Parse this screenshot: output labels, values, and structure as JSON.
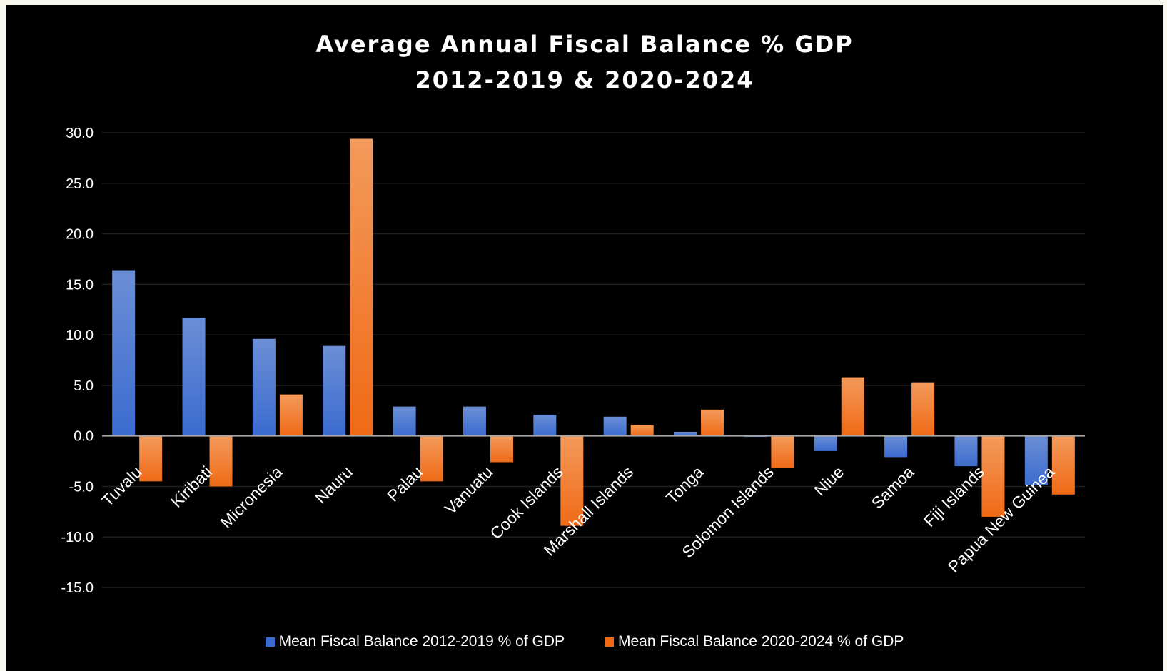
{
  "colors": {
    "background": "#000000",
    "page": "#f7f7ee",
    "series1_light": "#6b8fd6",
    "series1_dark": "#3b6bcf",
    "series2_light": "#f39a5b",
    "series2_dark": "#f06a16",
    "grid": "#1f1f1f",
    "zero_line": "#a6a6a6",
    "text": "#ffffff"
  },
  "chart_data": {
    "type": "bar",
    "title_lines": [
      "Average Annual Fiscal Balance % GDP",
      "2012-2019 & 2020-2024"
    ],
    "xlabel": "",
    "ylabel": "",
    "ylim": [
      -15,
      30
    ],
    "yticks": [
      "30.0",
      "25.0",
      "20.0",
      "15.0",
      "10.0",
      "5.0",
      "0.0",
      "-5.0",
      "-10.0",
      "-15.0"
    ],
    "ytick_values": [
      30,
      25,
      20,
      15,
      10,
      5,
      0,
      -5,
      -10,
      -15
    ],
    "grid": true,
    "legend_position": "bottom",
    "categories": [
      "Tuvalu",
      "Kiribati",
      "Micronesia",
      "Nauru",
      "Palau",
      "Vanuatu",
      "Cook Islands",
      "Marshall Islands",
      "Tonga",
      "Solomon Islands",
      "Niue",
      "Samoa",
      "Fiji Islands",
      "Papua New Guinea"
    ],
    "series": [
      {
        "name": "Mean Fiscal Balance  2012-2019 % of GDP",
        "values": [
          16.4,
          11.7,
          9.6,
          8.9,
          2.9,
          2.9,
          2.1,
          1.9,
          0.4,
          -0.1,
          -1.5,
          -2.1,
          -3.0,
          -4.9
        ]
      },
      {
        "name": "Mean Fiscal Balance  2020-2024 % of GDP",
        "values": [
          -4.5,
          -5.0,
          4.1,
          29.4,
          -4.5,
          -2.6,
          -8.9,
          1.1,
          2.6,
          -3.2,
          5.8,
          5.3,
          -8.0,
          -5.8
        ]
      }
    ]
  }
}
